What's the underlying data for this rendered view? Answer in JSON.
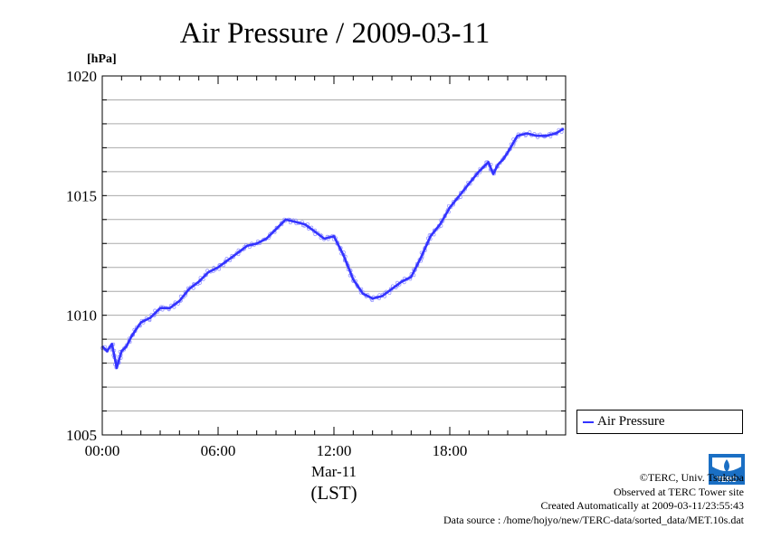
{
  "chart_data": {
    "type": "line",
    "title": "Air Pressure / 2009-03-11",
    "unit_label": "[hPa]",
    "xlabel_date": "Mar-11",
    "xlabel": "(LST)",
    "x_ticks": [
      "00:00",
      "06:00",
      "12:00",
      "18:00"
    ],
    "x_range_hours": [
      0,
      24
    ],
    "ylim": [
      1005,
      1020
    ],
    "y_ticks": [
      1005,
      1010,
      1015,
      1020
    ],
    "grid": true,
    "legend_position": "bottom-right outside",
    "series": [
      {
        "name": "Air Pressure",
        "color": "#3333ff",
        "x_hours": [
          0,
          0.25,
          0.5,
          0.75,
          1,
          1.25,
          1.5,
          1.75,
          2,
          2.5,
          3,
          3.5,
          4,
          4.5,
          5,
          5.5,
          6,
          6.5,
          7,
          7.5,
          8,
          8.5,
          9,
          9.5,
          10,
          10.5,
          11,
          11.5,
          12,
          12.5,
          13,
          13.5,
          14,
          14.5,
          15,
          15.5,
          16,
          16.5,
          17,
          17.5,
          18,
          18.5,
          19,
          19.5,
          20,
          20.25,
          20.5,
          20.75,
          21,
          21.5,
          22,
          22.5,
          23,
          23.5,
          23.9
        ],
        "values": [
          1008.7,
          1008.5,
          1008.8,
          1007.8,
          1008.5,
          1008.7,
          1009.1,
          1009.4,
          1009.7,
          1009.9,
          1010.3,
          1010.3,
          1010.6,
          1011.1,
          1011.4,
          1011.8,
          1012.0,
          1012.3,
          1012.6,
          1012.9,
          1013.0,
          1013.2,
          1013.6,
          1014.0,
          1013.9,
          1013.8,
          1013.5,
          1013.2,
          1013.3,
          1012.5,
          1011.5,
          1010.9,
          1010.7,
          1010.8,
          1011.1,
          1011.4,
          1011.6,
          1012.4,
          1013.3,
          1013.8,
          1014.5,
          1015.0,
          1015.5,
          1016.0,
          1016.4,
          1015.9,
          1016.3,
          1016.5,
          1016.8,
          1017.5,
          1017.6,
          1017.5,
          1017.5,
          1017.6,
          1017.8
        ]
      }
    ]
  },
  "footer": {
    "copyright": "©TERC, Univ. Tsukuba",
    "observed": "Observed at TERC Tower site",
    "created": "Created Automatically at 2009-03-11/23:55:43",
    "source": "Data source : /home/hojyo/new/TERC-data/sorted_data/MET.10s.dat"
  },
  "logo_text": "TERC"
}
